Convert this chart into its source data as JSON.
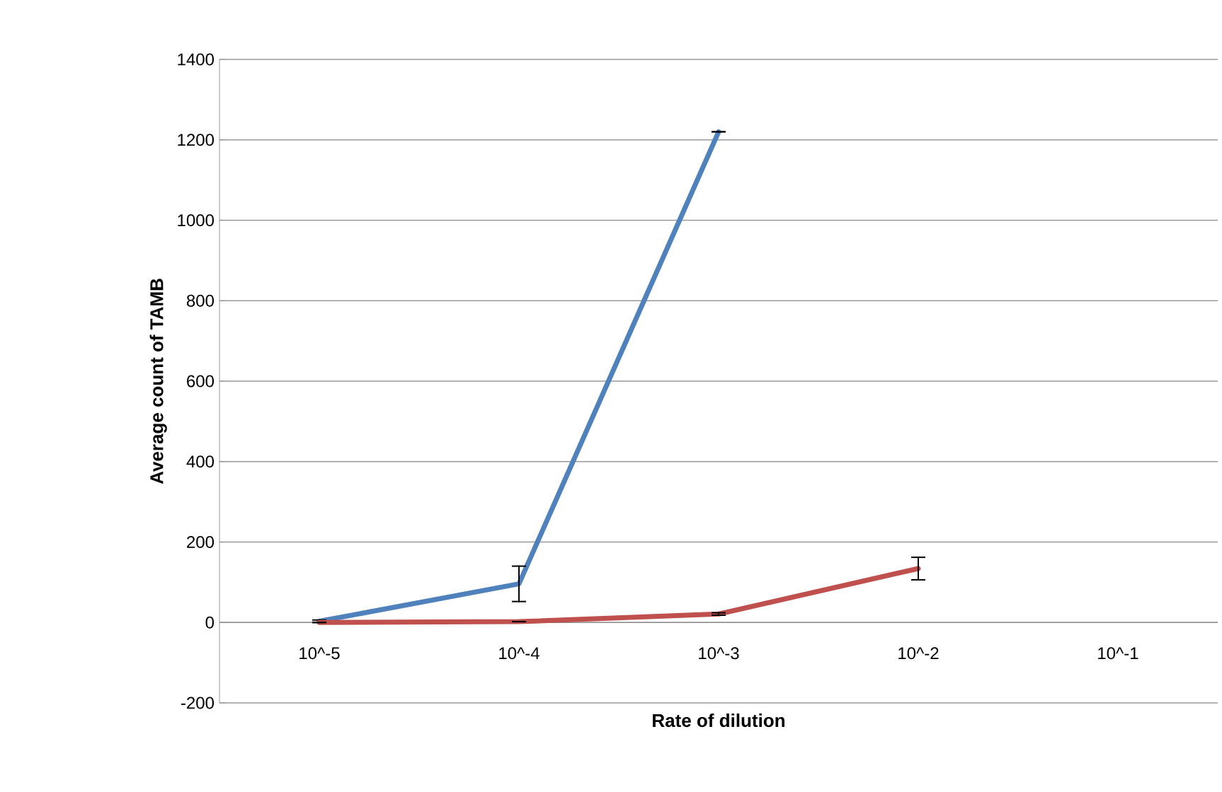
{
  "chart_data": {
    "type": "line",
    "xlabel": "Rate of dilution",
    "ylabel": "Average count of TAMB",
    "categories": [
      "10^-5",
      "10^-4",
      "10^-3",
      "10^-2",
      "10^-1"
    ],
    "series": [
      {
        "color": "#4f81bd",
        "values": [
          3,
          96,
          1220,
          null,
          null
        ],
        "errors": [
          3,
          44,
          null,
          null,
          null
        ]
      },
      {
        "color": "#c0504d",
        "values": [
          0,
          2,
          21,
          134,
          null
        ],
        "errors": [
          null,
          null,
          3,
          28,
          null
        ]
      }
    ],
    "ylim": [
      -200,
      1400
    ],
    "yticks": [
      -200,
      0,
      200,
      400,
      600,
      800,
      1000,
      1200,
      1400
    ],
    "grid": "y",
    "marker": "none",
    "line_style": "solid"
  }
}
